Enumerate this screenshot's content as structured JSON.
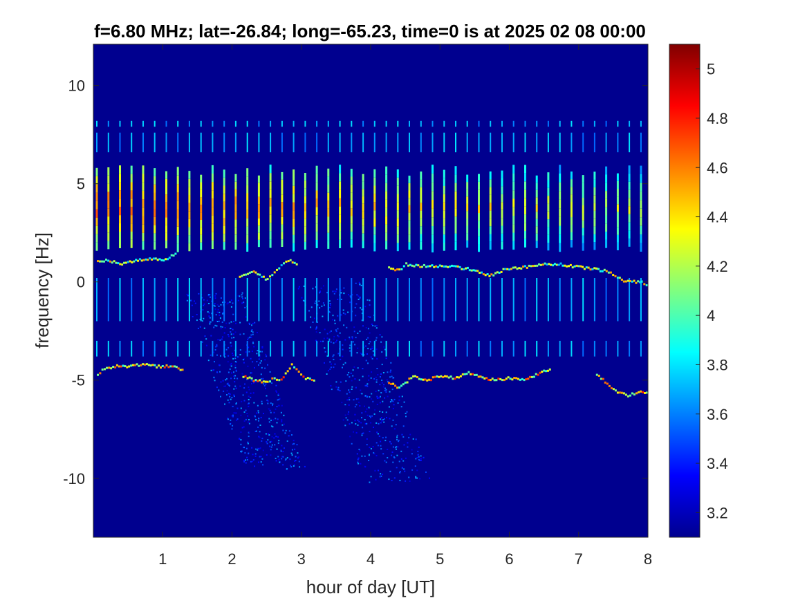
{
  "chart_data": {
    "type": "heatmap",
    "title": "f=6.80 MHz;  lat=-26.84; long=-65.23, time=0 is at 2025 02 08 00:00",
    "xlabel": "hour of day [UT]",
    "ylabel": "frequency [Hz]",
    "xlim": [
      0,
      8
    ],
    "ylim": [
      -13,
      12.1
    ],
    "x_ticks": [
      1,
      2,
      3,
      4,
      5,
      6,
      7,
      8
    ],
    "x_tick_labels": [
      "1",
      "2",
      "3",
      "4",
      "5",
      "6",
      "7",
      "8"
    ],
    "y_ticks": [
      10,
      5,
      0,
      -5,
      -10
    ],
    "y_tick_labels": [
      "10",
      "5",
      "0",
      "-5",
      "-10"
    ],
    "colorbar": {
      "colormap": "jet",
      "clim": [
        3.1,
        5.1
      ],
      "ticks": [
        5,
        4.8,
        4.6,
        4.4,
        4.2,
        4,
        3.8,
        3.6,
        3.4,
        3.2
      ],
      "tick_labels": [
        "5",
        "4.8",
        "4.6",
        "4.4",
        "4.2",
        "4",
        "3.8",
        "3.6",
        "3.4",
        "3.2"
      ]
    },
    "background_color": "#00008f",
    "features": {
      "periodic_streaks": {
        "period_hours": 0.167,
        "first_hour": 0.05,
        "last_hour": 7.9,
        "main_band_hz": [
          1.8,
          6.0
        ],
        "peak_value": 4.8
      },
      "positive_doppler_trace": [
        [
          0.05,
          1.0
        ],
        [
          0.2,
          1.1
        ],
        [
          0.4,
          0.9
        ],
        [
          0.6,
          1.1
        ],
        [
          0.8,
          1.2
        ],
        [
          1.0,
          1.1
        ],
        [
          1.2,
          1.5
        ],
        [
          2.1,
          0.3
        ],
        [
          2.3,
          0.5
        ],
        [
          2.5,
          0.1
        ],
        [
          2.6,
          0.5
        ],
        [
          2.7,
          0.8
        ],
        [
          2.8,
          1.1
        ],
        [
          2.95,
          0.9
        ],
        [
          4.25,
          0.7
        ],
        [
          4.4,
          0.6
        ],
        [
          4.5,
          0.9
        ],
        [
          4.7,
          0.8
        ],
        [
          4.9,
          0.8
        ],
        [
          5.1,
          0.8
        ],
        [
          5.3,
          0.7
        ],
        [
          5.5,
          0.6
        ],
        [
          5.7,
          0.3
        ],
        [
          5.9,
          0.6
        ],
        [
          6.1,
          0.7
        ],
        [
          6.3,
          0.8
        ],
        [
          6.5,
          0.9
        ],
        [
          6.7,
          0.9
        ],
        [
          6.9,
          0.8
        ],
        [
          7.1,
          0.7
        ],
        [
          7.3,
          0.6
        ],
        [
          7.45,
          0.5
        ],
        [
          7.55,
          0.2
        ],
        [
          7.7,
          0.0
        ],
        [
          7.9,
          0.0
        ],
        [
          8.0,
          -0.3
        ]
      ],
      "negative_doppler_trace": [
        [
          0.05,
          -4.7
        ],
        [
          0.15,
          -4.4
        ],
        [
          0.3,
          -4.3
        ],
        [
          0.5,
          -4.3
        ],
        [
          0.7,
          -4.2
        ],
        [
          0.9,
          -4.3
        ],
        [
          1.1,
          -4.3
        ],
        [
          1.3,
          -4.5
        ],
        [
          2.15,
          -4.8
        ],
        [
          2.3,
          -5.0
        ],
        [
          2.5,
          -5.1
        ],
        [
          2.6,
          -4.9
        ],
        [
          2.7,
          -5.0
        ],
        [
          2.85,
          -4.2
        ],
        [
          2.95,
          -4.6
        ],
        [
          3.05,
          -4.9
        ],
        [
          3.2,
          -5.1
        ],
        [
          4.25,
          -5.1
        ],
        [
          4.4,
          -5.4
        ],
        [
          4.6,
          -4.8
        ],
        [
          4.8,
          -5.0
        ],
        [
          5.0,
          -4.8
        ],
        [
          5.2,
          -4.9
        ],
        [
          5.4,
          -4.6
        ],
        [
          5.6,
          -4.9
        ],
        [
          5.8,
          -5.0
        ],
        [
          6.0,
          -4.9
        ],
        [
          6.2,
          -5.0
        ],
        [
          6.4,
          -4.7
        ],
        [
          6.6,
          -4.4
        ],
        [
          7.25,
          -4.7
        ],
        [
          7.4,
          -5.2
        ],
        [
          7.55,
          -5.6
        ],
        [
          7.7,
          -5.8
        ],
        [
          7.85,
          -5.6
        ],
        [
          8.0,
          -5.7
        ]
      ],
      "diffuse_spread_regions": [
        {
          "x_start": 1.3,
          "x_end": 2.9,
          "y_top": -0.5,
          "y_bottom": -9.5
        },
        {
          "x_start": 2.9,
          "x_end": 4.7,
          "y_top": 0.0,
          "y_bottom": -10.2
        }
      ]
    }
  }
}
